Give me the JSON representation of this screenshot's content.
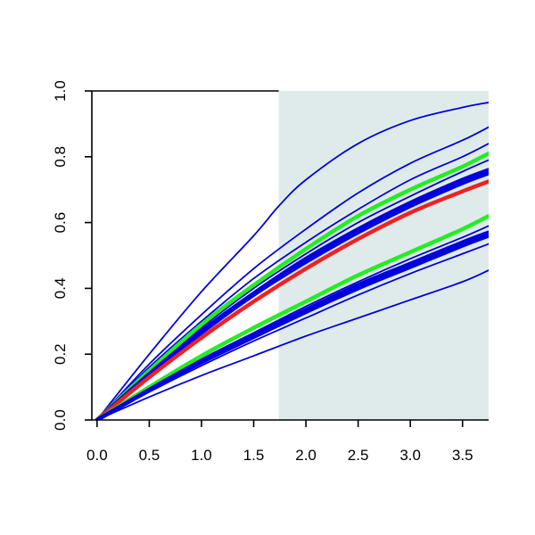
{
  "chart_data": {
    "type": "line",
    "title": "",
    "xlabel": "",
    "ylabel": "",
    "xlim": [
      -0.05,
      3.75
    ],
    "ylim": [
      0,
      1
    ],
    "grid": false,
    "legend": "none",
    "x_ticks": [
      "0.0",
      "0.5",
      "1.0",
      "1.5",
      "2.0",
      "2.5",
      "3.0",
      "3.5"
    ],
    "y_ticks": [
      "0.0",
      "0.2",
      "0.4",
      "0.6",
      "0.8",
      "1.0"
    ],
    "shaded_region": {
      "x_start": 1.74,
      "x_end": 3.75,
      "color": "#dfebeb"
    },
    "colors": {
      "blue": "#0000dd",
      "green": "#22ee22",
      "red": "#ee2222"
    },
    "series": [
      {
        "color": "blue",
        "width": "thin",
        "x": [
          0,
          0.5,
          1.0,
          1.5,
          1.74,
          2.0,
          2.5,
          3.0,
          3.5,
          3.75
        ],
        "y": [
          0,
          0.2,
          0.39,
          0.56,
          0.65,
          0.73,
          0.84,
          0.91,
          0.95,
          0.965
        ]
      },
      {
        "color": "blue",
        "width": "thin",
        "x": [
          0,
          0.5,
          1.0,
          1.5,
          2.0,
          2.5,
          3.0,
          3.5,
          3.75
        ],
        "y": [
          0,
          0.17,
          0.32,
          0.46,
          0.58,
          0.69,
          0.78,
          0.85,
          0.89
        ]
      },
      {
        "color": "blue",
        "width": "thin",
        "x": [
          0,
          0.5,
          1.0,
          1.5,
          2.0,
          2.5,
          3.0,
          3.5,
          3.75
        ],
        "y": [
          0,
          0.16,
          0.3,
          0.43,
          0.54,
          0.64,
          0.73,
          0.8,
          0.84
        ]
      },
      {
        "color": "green",
        "width": "thick",
        "x": [
          0,
          0.5,
          1.0,
          1.5,
          2.0,
          2.5,
          3.0,
          3.5,
          3.75
        ],
        "y": [
          0,
          0.15,
          0.29,
          0.41,
          0.52,
          0.62,
          0.7,
          0.77,
          0.81
        ]
      },
      {
        "color": "blue",
        "width": "thin",
        "x": [
          0,
          0.5,
          1.0,
          1.5,
          2.0,
          2.5,
          3.0,
          3.5,
          3.75
        ],
        "y": [
          0,
          0.145,
          0.28,
          0.4,
          0.505,
          0.6,
          0.68,
          0.755,
          0.79
        ]
      },
      {
        "color": "blue",
        "width": "thick",
        "x": [
          0,
          0.5,
          1.0,
          1.5,
          2.0,
          2.5,
          3.0,
          3.5,
          3.75
        ],
        "y": [
          0,
          0.14,
          0.27,
          0.385,
          0.49,
          0.58,
          0.66,
          0.73,
          0.76
        ]
      },
      {
        "color": "blue",
        "width": "thick",
        "x": [
          0,
          0.5,
          1.0,
          1.5,
          2.0,
          2.5,
          3.0,
          3.5,
          3.75
        ],
        "y": [
          0,
          0.138,
          0.265,
          0.38,
          0.48,
          0.57,
          0.65,
          0.72,
          0.75
        ]
      },
      {
        "color": "red",
        "width": "thick",
        "x": [
          0,
          0.5,
          1.0,
          1.5,
          2.0,
          2.5,
          3.0,
          3.5,
          3.75
        ],
        "y": [
          0,
          0.13,
          0.25,
          0.36,
          0.46,
          0.55,
          0.63,
          0.695,
          0.725
        ]
      },
      {
        "color": "green",
        "width": "thick",
        "x": [
          0,
          0.5,
          1.0,
          1.5,
          2.0,
          2.5,
          3.0,
          3.5,
          3.75
        ],
        "y": [
          0,
          0.1,
          0.195,
          0.28,
          0.36,
          0.44,
          0.51,
          0.58,
          0.62
        ]
      },
      {
        "color": "blue",
        "width": "thin",
        "x": [
          0,
          0.5,
          1.0,
          1.5,
          2.0,
          2.5,
          3.0,
          3.5,
          3.75
        ],
        "y": [
          0,
          0.095,
          0.185,
          0.265,
          0.345,
          0.42,
          0.49,
          0.555,
          0.59
        ]
      },
      {
        "color": "blue",
        "width": "thick",
        "x": [
          0,
          0.5,
          1.0,
          1.5,
          2.0,
          2.5,
          3.0,
          3.5,
          3.75
        ],
        "y": [
          0,
          0.092,
          0.18,
          0.258,
          0.335,
          0.41,
          0.475,
          0.54,
          0.57
        ]
      },
      {
        "color": "blue",
        "width": "thick",
        "x": [
          0,
          0.5,
          1.0,
          1.5,
          2.0,
          2.5,
          3.0,
          3.5,
          3.75
        ],
        "y": [
          0,
          0.09,
          0.175,
          0.252,
          0.328,
          0.4,
          0.465,
          0.53,
          0.56
        ]
      },
      {
        "color": "blue",
        "width": "thin",
        "x": [
          0,
          0.5,
          1.0,
          1.5,
          2.0,
          2.5,
          3.0,
          3.5,
          3.75
        ],
        "y": [
          0,
          0.085,
          0.165,
          0.24,
          0.31,
          0.38,
          0.445,
          0.505,
          0.535
        ]
      },
      {
        "color": "blue",
        "width": "thin",
        "x": [
          0,
          0.5,
          1.0,
          1.5,
          2.0,
          2.5,
          3.0,
          3.5,
          3.75
        ],
        "y": [
          0,
          0.07,
          0.135,
          0.195,
          0.255,
          0.31,
          0.365,
          0.42,
          0.455
        ]
      }
    ]
  }
}
